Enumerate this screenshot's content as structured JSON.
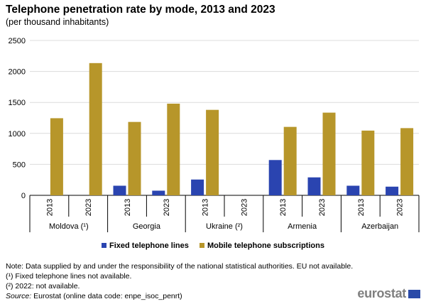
{
  "title": "Telephone penetration rate by mode, 2013 and 2023",
  "subtitle": "(per thousand inhabitants)",
  "colors": {
    "fixed": "#2a44b0",
    "mobile": "#b7962a",
    "grid": "#dcdcdc",
    "axis": "#000000"
  },
  "chart_data": {
    "type": "bar",
    "ylim": [
      0,
      2500
    ],
    "yticks": [
      "0",
      "500",
      "1000",
      "1500",
      "2000",
      "2500"
    ],
    "groups": [
      {
        "country": "Moldova (¹)",
        "years": [
          "2013",
          "2023"
        ]
      },
      {
        "country": "Georgia",
        "years": [
          "2013",
          "2023"
        ]
      },
      {
        "country": "Ukraine (²)",
        "years": [
          "2013",
          "2023"
        ]
      },
      {
        "country": "Armenia",
        "years": [
          "2013",
          "2023"
        ]
      },
      {
        "country": "Azerbaijan",
        "years": [
          "2013",
          "2023"
        ]
      }
    ],
    "series": [
      {
        "name": "Fixed telephone lines",
        "values": [
          null,
          null,
          155,
          75,
          255,
          null,
          570,
          290,
          155,
          140
        ]
      },
      {
        "name": "Mobile telephone subscriptions",
        "values": [
          1245,
          2135,
          1185,
          1480,
          1380,
          null,
          1105,
          1335,
          1045,
          1085
        ]
      }
    ]
  },
  "notes": [
    "Note: Data supplied by and under the responsibility of the national statistical authorities. EU not available.",
    "(¹) Fixed telephone lines not available.",
    "(²) 2022: not available."
  ],
  "source_label": "Source:",
  "source_text": "Eurostat (online data code: enpe_isoc_penrt)",
  "logo_text": "eurostat"
}
